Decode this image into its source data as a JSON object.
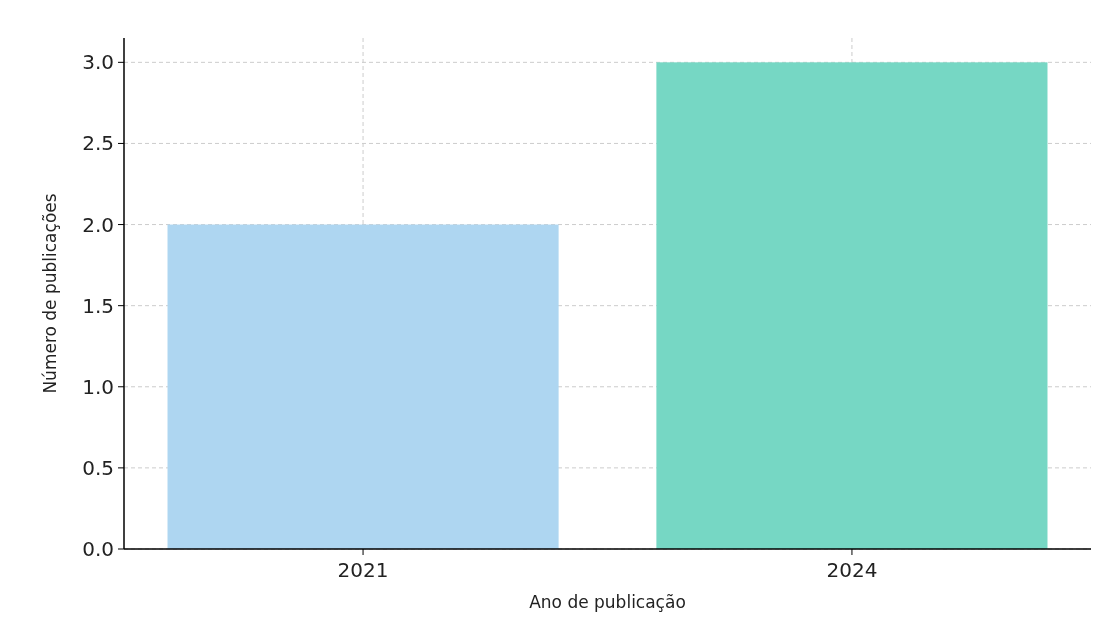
{
  "chart_data": {
    "type": "bar",
    "xlabel": "Ano de publicação",
    "ylabel": "Número de publicações",
    "categories": [
      "2021",
      "2024"
    ],
    "values": [
      2,
      3
    ],
    "colors": [
      "#aed6f1",
      "#76d7c4"
    ],
    "ylim": [
      0,
      3.15
    ],
    "yticks": [
      {
        "value": 0,
        "label": "0.0"
      },
      {
        "value": 0.5,
        "label": "0.5"
      },
      {
        "value": 1,
        "label": "1.0"
      },
      {
        "value": 1.5,
        "label": "1.5"
      },
      {
        "value": 2,
        "label": "2.0"
      },
      {
        "value": 2.5,
        "label": "2.5"
      },
      {
        "value": 3,
        "label": "3.0"
      }
    ],
    "grid": true
  }
}
